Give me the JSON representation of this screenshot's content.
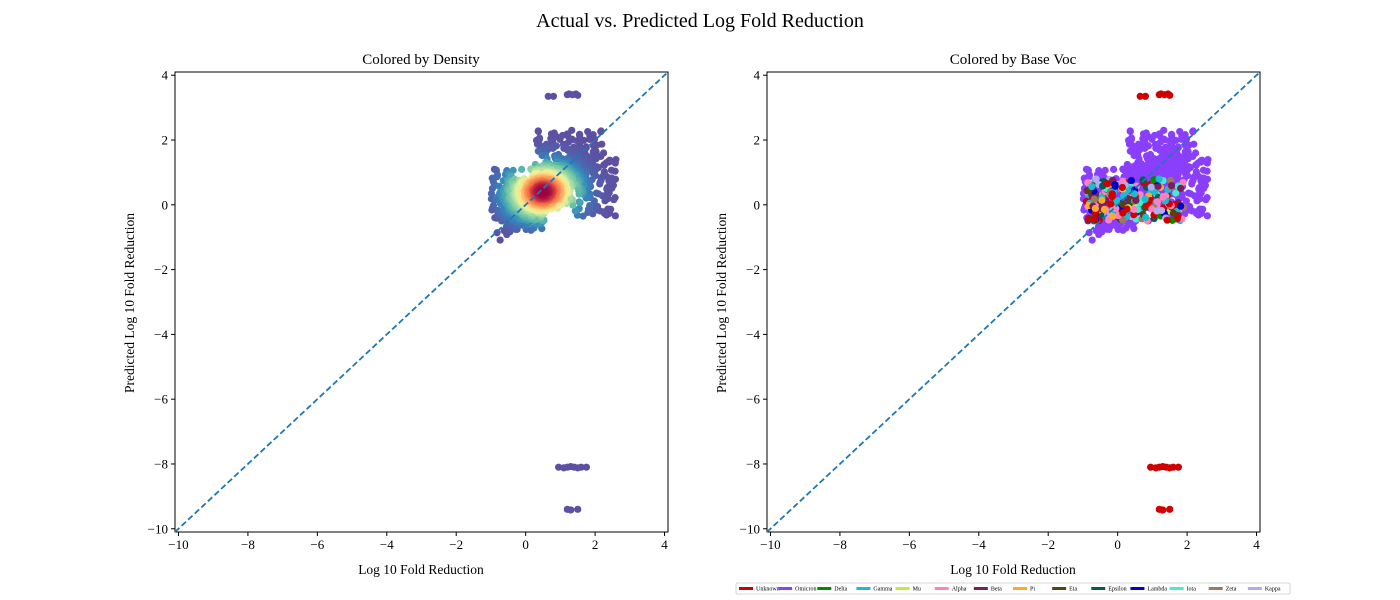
{
  "figure": {
    "title": "Actual vs. Predicted Log Fold Reduction"
  },
  "chart_data": [
    {
      "type": "scatter",
      "title": "Colored by Density",
      "xlabel": "Log 10 Fold Reduction",
      "ylabel": "Predicted Log 10 Fold Reduction",
      "xlim": [
        -10.1,
        4.1
      ],
      "ylim": [
        -10.1,
        4.1
      ],
      "xticks": [
        -10,
        -8,
        -6,
        -4,
        -2,
        0,
        2,
        4
      ],
      "yticks": [
        -10,
        -8,
        -6,
        -4,
        -2,
        0,
        2,
        4
      ],
      "xtick_labels": [
        "−10",
        "−8",
        "−6",
        "−4",
        "−2",
        "0",
        "2",
        "4"
      ],
      "ytick_labels": [
        "−10",
        "−8",
        "−6",
        "−4",
        "−2",
        "0",
        "2",
        "4"
      ],
      "reference_line": {
        "from": [
          -10.1,
          -10.1
        ],
        "to": [
          4.1,
          4.1
        ],
        "style": "dashed",
        "color": "#1f77b4"
      },
      "colormap": "Spectral_r",
      "cluster": {
        "center": [
          0.5,
          0.4
        ],
        "x_range": [
          -1.0,
          2.6
        ],
        "y_range": [
          -1.1,
          2.3
        ]
      },
      "outliers": [
        {
          "x": [
            0.65,
            0.8,
            1.2,
            1.25,
            1.35,
            1.45,
            1.5
          ],
          "y": [
            3.35,
            3.35,
            3.4,
            3.42,
            3.4,
            3.42,
            3.38
          ]
        },
        {
          "x": [
            0.95,
            1.1,
            1.2,
            1.3,
            1.4,
            1.5,
            1.6,
            1.75
          ],
          "y": [
            -8.1,
            -8.12,
            -8.1,
            -8.08,
            -8.1,
            -8.12,
            -8.1,
            -8.1
          ]
        },
        {
          "x": [
            1.2,
            1.3,
            1.5
          ],
          "y": [
            -9.4,
            -9.42,
            -9.4
          ]
        }
      ]
    },
    {
      "type": "scatter",
      "title": "Colored by Base Voc",
      "xlabel": "Log 10 Fold Reduction",
      "ylabel": "Predicted Log 10 Fold Reduction",
      "xlim": [
        -10.1,
        4.1
      ],
      "ylim": [
        -10.1,
        4.1
      ],
      "xticks": [
        -10,
        -8,
        -6,
        -4,
        -2,
        0,
        2,
        4
      ],
      "yticks": [
        -10,
        -8,
        -6,
        -4,
        -2,
        0,
        2,
        4
      ],
      "xtick_labels": [
        "−10",
        "−8",
        "−6",
        "−4",
        "−2",
        "0",
        "2",
        "4"
      ],
      "ytick_labels": [
        "−10",
        "−8",
        "−6",
        "−4",
        "−2",
        "0",
        "2",
        "4"
      ],
      "reference_line": {
        "from": [
          -10.1,
          -10.1
        ],
        "to": [
          4.1,
          4.1
        ],
        "style": "dashed",
        "color": "#1f77b4"
      },
      "legend": {
        "position": "bottom-right",
        "entries": [
          {
            "label": "Unknown",
            "color": "#d00000"
          },
          {
            "label": "Omicron",
            "color": "#8a3ffc"
          },
          {
            "label": "Delta",
            "color": "#008a00"
          },
          {
            "label": "Gamma",
            "color": "#17becf"
          },
          {
            "label": "Mu",
            "color": "#b6f03c"
          },
          {
            "label": "Alpha",
            "color": "#ff7fbf"
          },
          {
            "label": "Beta",
            "color": "#7a1f5c"
          },
          {
            "label": "Pi",
            "color": "#ffa830"
          },
          {
            "label": "Eta",
            "color": "#5c4010"
          },
          {
            "label": "Epsilon",
            "color": "#005e55"
          },
          {
            "label": "Lambda",
            "color": "#0000c8"
          },
          {
            "label": "Iota",
            "color": "#3ff0d0"
          },
          {
            "label": "Zeta",
            "color": "#a0785a"
          },
          {
            "label": "Kappa",
            "color": "#b4aaf0"
          }
        ]
      },
      "outliers": [
        {
          "x": [
            0.65,
            0.8,
            1.2,
            1.25,
            1.35,
            1.45,
            1.5
          ],
          "y": [
            3.35,
            3.35,
            3.4,
            3.42,
            3.4,
            3.42,
            3.38
          ]
        },
        {
          "x": [
            0.95,
            1.1,
            1.2,
            1.3,
            1.4,
            1.5,
            1.6,
            1.75
          ],
          "y": [
            -8.1,
            -8.12,
            -8.1,
            -8.08,
            -8.1,
            -8.12,
            -8.1,
            -8.1
          ]
        },
        {
          "x": [
            1.2,
            1.3,
            1.5
          ],
          "y": [
            -9.4,
            -9.42,
            -9.4
          ]
        }
      ]
    }
  ]
}
